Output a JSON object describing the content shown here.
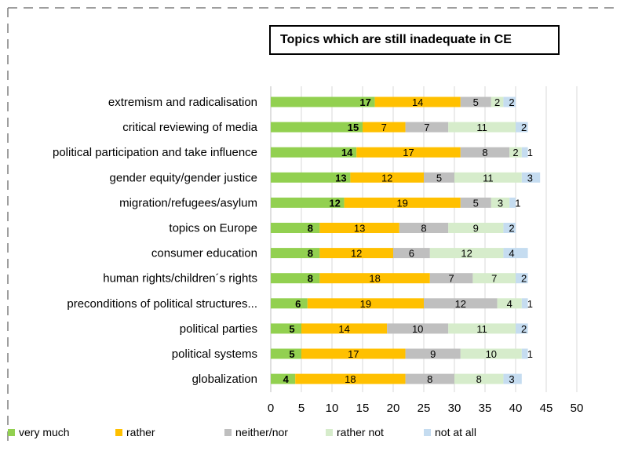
{
  "chart_data": {
    "type": "bar",
    "orientation": "horizontal",
    "stacked": true,
    "title": "Topics which are still inadequate in CE",
    "categories": [
      "extremism and radicalisation",
      "critical reviewing of media",
      "political participation and take influence",
      "gender equity/gender justice",
      "migration/refugees/asylum",
      "topics on Europe",
      "consumer education",
      "human rights/children´s rights",
      "preconditions of political structures...",
      "political parties",
      "political systems",
      "globalization"
    ],
    "series": [
      {
        "name": "very much",
        "color": "#92d050",
        "values": [
          17,
          15,
          14,
          13,
          12,
          8,
          8,
          8,
          6,
          5,
          5,
          4
        ]
      },
      {
        "name": "rather",
        "color": "#ffc000",
        "values": [
          14,
          7,
          17,
          12,
          19,
          13,
          12,
          18,
          19,
          14,
          17,
          18
        ]
      },
      {
        "name": "neither/nor",
        "color": "#bfbfbf",
        "values": [
          5,
          7,
          8,
          5,
          5,
          8,
          6,
          7,
          12,
          10,
          9,
          8
        ]
      },
      {
        "name": "rather not",
        "color": "#d6eccb",
        "values": [
          2,
          11,
          2,
          11,
          3,
          9,
          12,
          7,
          4,
          11,
          10,
          8
        ]
      },
      {
        "name": "not at all",
        "color": "#c5dcf0",
        "values": [
          2,
          2,
          1,
          3,
          1,
          2,
          4,
          2,
          1,
          2,
          1,
          3
        ]
      }
    ],
    "xlim": [
      0,
      50
    ],
    "xticks": [
      "0",
      "5",
      "10",
      "15",
      "20",
      "25",
      "30",
      "35",
      "40",
      "45",
      "50"
    ],
    "grid": true,
    "legend_position": "bottom"
  }
}
